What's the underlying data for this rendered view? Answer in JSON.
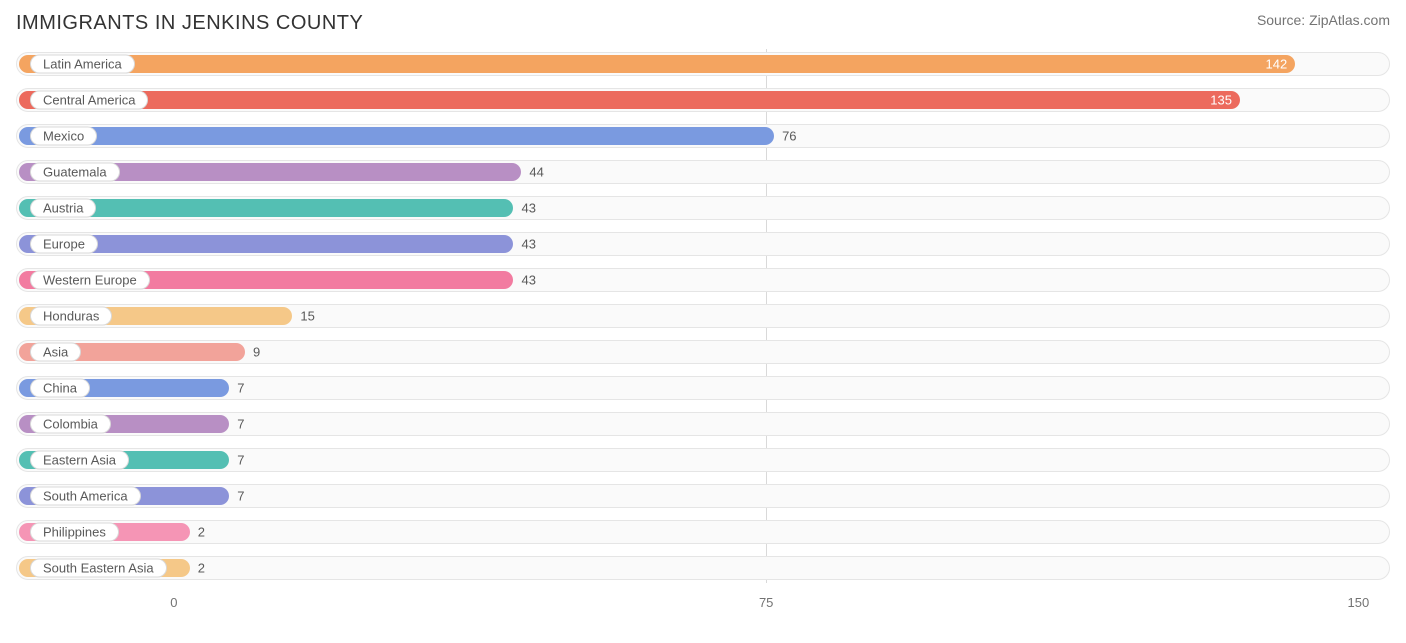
{
  "title": "IMMIGRANTS IN JENKINS COUNTY",
  "source": "Source: ZipAtlas.com",
  "chart": {
    "type": "bar",
    "xmin": -20,
    "xmax": 154,
    "ticks": [
      0,
      75,
      150
    ],
    "track_bg": "#fafafa",
    "track_border": "#e5e5e5",
    "label_text_color": "#595959",
    "value_text_color_inside": "#ffffff",
    "value_text_color_outside": "#595959",
    "bars": [
      {
        "label": "Latin America",
        "value": 142,
        "color": "#f4a460",
        "value_placement": "inside"
      },
      {
        "label": "Central America",
        "value": 135,
        "color": "#ec6a5d",
        "value_placement": "inside"
      },
      {
        "label": "Mexico",
        "value": 76,
        "color": "#7a9ae0",
        "value_placement": "outside"
      },
      {
        "label": "Guatemala",
        "value": 44,
        "color": "#b88fc4",
        "value_placement": "outside"
      },
      {
        "label": "Austria",
        "value": 43,
        "color": "#54bfb3",
        "value_placement": "outside"
      },
      {
        "label": "Europe",
        "value": 43,
        "color": "#8c93d9",
        "value_placement": "outside"
      },
      {
        "label": "Western Europe",
        "value": 43,
        "color": "#f27ba0",
        "value_placement": "outside"
      },
      {
        "label": "Honduras",
        "value": 15,
        "color": "#f5c888",
        "value_placement": "outside"
      },
      {
        "label": "Asia",
        "value": 9,
        "color": "#f2a39a",
        "value_placement": "outside"
      },
      {
        "label": "China",
        "value": 7,
        "color": "#7a9ae0",
        "value_placement": "outside"
      },
      {
        "label": "Colombia",
        "value": 7,
        "color": "#b88fc4",
        "value_placement": "outside"
      },
      {
        "label": "Eastern Asia",
        "value": 7,
        "color": "#54bfb3",
        "value_placement": "outside"
      },
      {
        "label": "South America",
        "value": 7,
        "color": "#8c93d9",
        "value_placement": "outside"
      },
      {
        "label": "Philippines",
        "value": 2,
        "color": "#f595b5",
        "value_placement": "outside"
      },
      {
        "label": "South Eastern Asia",
        "value": 2,
        "color": "#f5c888",
        "value_placement": "outside"
      }
    ]
  }
}
